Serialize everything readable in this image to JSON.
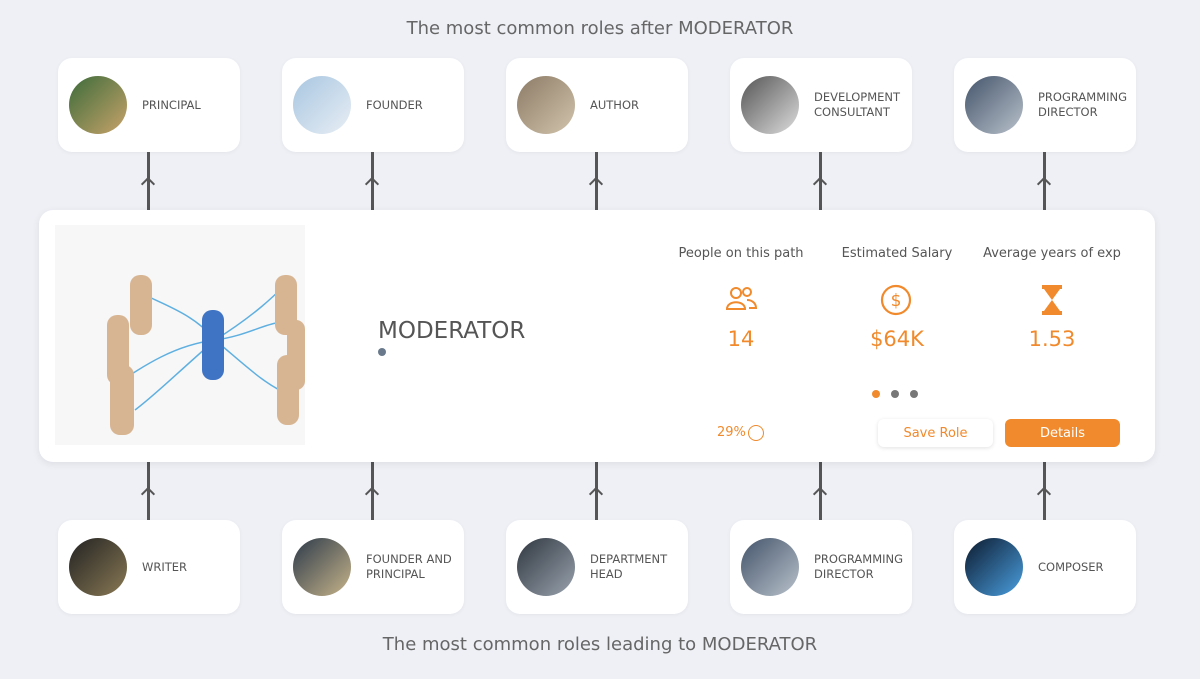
{
  "header": {
    "title": "The most common roles after MODERATOR"
  },
  "next_roles": [
    "PRINCIPAL",
    "FOUNDER",
    "AUTHOR",
    "DEVELOPMENT CONSULTANT",
    "PROGRAMMING DIRECTOR"
  ],
  "role": {
    "title": "MODERATOR",
    "stats": [
      {
        "label": "People on this path",
        "value": "14"
      },
      {
        "label": "Estimated Salary",
        "value": "$64K"
      },
      {
        "label": "Average years of exp",
        "value": "1.53"
      }
    ],
    "match": "29%",
    "buttons": [
      "Save Role",
      "Details"
    ]
  },
  "previous_roles": [
    "WRITER",
    "FOUNDER AND PRINCIPAL",
    "DEPARTMENT HEAD",
    "PROGRAMMING DIRECTOR",
    "COMPOSER"
  ],
  "footer": {
    "title": "The most common roles leading to MODERATOR"
  }
}
